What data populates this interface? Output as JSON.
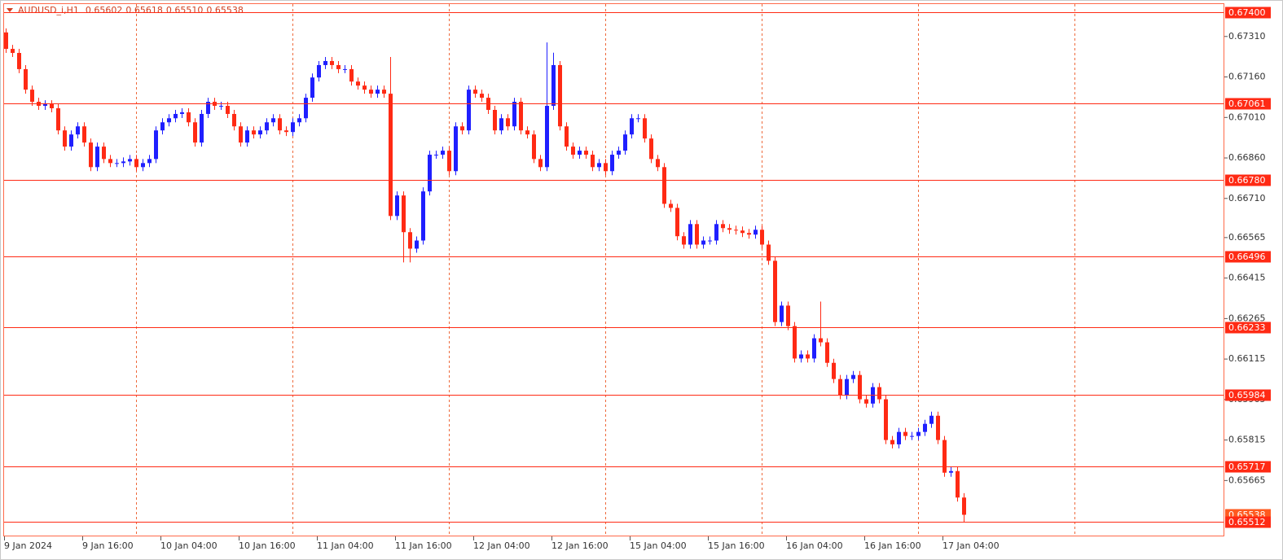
{
  "chart_data": {
    "type": "candlestick",
    "title": "AUDUSD_i,H1",
    "title_values": [
      "0.65602",
      "0.65618",
      "0.65510",
      "0.65538"
    ],
    "up_color": "#1f1fff",
    "down_color": "#ff2a14",
    "level_color": "#ff2a14",
    "grid_color": "#ee6a3c",
    "grid": true,
    "ylim": [
      0.65458,
      0.6743
    ],
    "yticks": [
      {
        "value": 0.6731,
        "label": "0.67310"
      },
      {
        "value": 0.6716,
        "label": "0.67160"
      },
      {
        "value": 0.6701,
        "label": "0.67010"
      },
      {
        "value": 0.6686,
        "label": "0.66860"
      },
      {
        "value": 0.6671,
        "label": "0.66710"
      },
      0.66565,
      0.66415,
      0.66265,
      0.66115,
      0.65965,
      0.65815,
      0.65665
    ],
    "levels": [
      {
        "value": 0.674,
        "label": "0.67400"
      },
      0.67061,
      {
        "value": 0.6678,
        "label": "0.66780"
      },
      0.66496,
      0.66233,
      0.65984,
      0.65717,
      0.65512
    ],
    "current_price": 0.65538,
    "categories": [
      "9 Jan 2024",
      null,
      null,
      null,
      null,
      null,
      null,
      null,
      null,
      null,
      null,
      null,
      "9 Jan 16:00",
      null,
      null,
      null,
      null,
      null,
      null,
      null,
      null,
      null,
      null,
      null,
      "10 Jan 04:00",
      null,
      null,
      null,
      null,
      null,
      null,
      null,
      null,
      null,
      null,
      null,
      "10 Jan 16:00",
      null,
      null,
      null,
      null,
      null,
      null,
      null,
      null,
      null,
      null,
      null,
      "11 Jan 04:00",
      null,
      null,
      null,
      null,
      null,
      null,
      null,
      null,
      null,
      null,
      null,
      "11 Jan 16:00",
      null,
      null,
      null,
      null,
      null,
      null,
      null,
      null,
      null,
      null,
      null,
      "12 Jan 04:00",
      null,
      null,
      null,
      null,
      null,
      null,
      null,
      null,
      null,
      null,
      null,
      "12 Jan 16:00",
      null,
      null,
      null,
      null,
      null,
      null,
      null,
      null,
      null,
      null,
      null,
      "15 Jan 04:00",
      null,
      null,
      null,
      null,
      null,
      null,
      null,
      null,
      null,
      null,
      null,
      "15 Jan 16:00",
      null,
      null,
      null,
      null,
      null,
      null,
      null,
      null,
      null,
      null,
      null,
      "16 Jan 04:00",
      null,
      null,
      null,
      null,
      null,
      null,
      null,
      null,
      null,
      null,
      null,
      "16 Jan 16:00",
      null,
      null,
      null,
      null,
      null,
      null,
      null,
      null,
      null,
      null,
      null,
      "17 Jan 04:00",
      null,
      null,
      null
    ],
    "open": [
      0.67325,
      0.67264,
      0.67249,
      0.67189,
      0.67113,
      0.67068,
      0.67053,
      0.67059,
      0.67044,
      0.66962,
      0.66902,
      0.66947,
      0.66977,
      0.66917,
      0.66826,
      0.66902,
      0.66856,
      0.66841,
      0.66841,
      0.66847,
      0.66856,
      0.66826,
      0.66841,
      0.66856,
      0.66962,
      0.66992,
      0.67007,
      0.67023,
      0.67029,
      0.66992,
      0.66917,
      0.67023,
      0.67068,
      0.67053,
      0.67053,
      0.67023,
      0.66977,
      0.66917,
      0.66962,
      0.66947,
      0.66962,
      0.66992,
      0.67007,
      0.66962,
      0.66956,
      0.66992,
      0.67007,
      0.67083,
      0.67158,
      0.67204,
      0.67219,
      0.67204,
      0.67189,
      0.67189,
      0.67143,
      0.67128,
      0.67113,
      0.67098,
      0.67113,
      0.67098,
      0.66645,
      0.66721,
      0.66585,
      0.66524,
      0.66554,
      0.66736,
      0.66872,
      0.66872,
      0.66887,
      0.66811,
      0.66977,
      0.66962,
      0.67113,
      0.67098,
      0.67083,
      0.67038,
      0.66962,
      0.67007,
      0.66977,
      0.67068,
      0.66962,
      0.66947,
      0.66856,
      0.66826,
      0.67053,
      0.67204,
      0.66977,
      0.66902,
      0.66872,
      0.66887,
      0.66872,
      0.66826,
      0.66841,
      0.66811,
      0.66872,
      0.66887,
      0.66947,
      0.67007,
      0.67007,
      0.66932,
      0.66856,
      0.66826,
      0.6669,
      0.66675,
      0.6657,
      0.66539,
      0.66615,
      0.66539,
      0.66554,
      0.66554,
      0.66615,
      0.666,
      0.66594,
      0.66591,
      0.66582,
      0.66576,
      0.66594,
      0.66539,
      0.66479,
      0.66252,
      0.66313,
      0.66237,
      0.66117,
      0.66132,
      0.66117,
      0.66192,
      0.66177,
      0.66101,
      0.66041,
      0.65981,
      0.66041,
      0.66056,
      0.65966,
      0.6595,
      0.66011,
      0.65966,
      0.65815,
      0.65799,
      0.65845,
      0.6583,
      0.6583,
      0.65845,
      0.65875,
      0.65905,
      0.65815,
      0.65694,
      0.657,
      0.65602
    ],
    "high": [
      0.6734,
      0.67279,
      0.67264,
      0.67204,
      0.67128,
      0.67083,
      0.67074,
      0.67074,
      0.67059,
      0.66977,
      0.66962,
      0.66992,
      0.66992,
      0.66932,
      0.66917,
      0.66917,
      0.66871,
      0.66856,
      0.66862,
      0.66871,
      0.66871,
      0.66856,
      0.66871,
      0.66977,
      0.67007,
      0.67022,
      0.67038,
      0.67044,
      0.67044,
      0.67007,
      0.67038,
      0.67083,
      0.67083,
      0.67068,
      0.67068,
      0.67038,
      0.66992,
      0.66977,
      0.66977,
      0.66977,
      0.67007,
      0.67022,
      0.67022,
      0.66977,
      0.67007,
      0.67022,
      0.67098,
      0.67173,
      0.67219,
      0.67234,
      0.67234,
      0.67219,
      0.67204,
      0.67204,
      0.67158,
      0.67143,
      0.67128,
      0.67128,
      0.67128,
      0.67234,
      0.66736,
      0.66736,
      0.666,
      0.66569,
      0.66751,
      0.66887,
      0.66887,
      0.66902,
      0.66902,
      0.66992,
      0.66992,
      0.67128,
      0.67128,
      0.67113,
      0.67098,
      0.67053,
      0.67022,
      0.67022,
      0.67083,
      0.67083,
      0.66977,
      0.66962,
      0.66871,
      0.67288,
      0.6725,
      0.67219,
      0.66992,
      0.66917,
      0.66902,
      0.66902,
      0.66887,
      0.66856,
      0.66856,
      0.66887,
      0.66902,
      0.66962,
      0.67022,
      0.67022,
      0.67022,
      0.66947,
      0.66871,
      0.66841,
      0.66705,
      0.6669,
      0.66585,
      0.6663,
      0.6663,
      0.66569,
      0.66569,
      0.6663,
      0.6663,
      0.66615,
      0.66609,
      0.66606,
      0.66597,
      0.66609,
      0.66609,
      0.66554,
      0.66494,
      0.66328,
      0.66328,
      0.66252,
      0.66147,
      0.66147,
      0.66207,
      0.66328,
      0.66192,
      0.66116,
      0.66056,
      0.66056,
      0.66071,
      0.66071,
      0.65981,
      0.66026,
      0.66026,
      0.65981,
      0.6583,
      0.6586,
      0.6586,
      0.65845,
      0.6586,
      0.6589,
      0.6592,
      0.6592,
      0.6583,
      0.65715,
      0.65715,
      0.65618
    ],
    "low": [
      0.67249,
      0.67234,
      0.67174,
      0.67098,
      0.67053,
      0.67038,
      0.67038,
      0.67029,
      0.66947,
      0.66887,
      0.66887,
      0.66932,
      0.66902,
      0.66811,
      0.66811,
      0.66841,
      0.66826,
      0.66826,
      0.66826,
      0.66832,
      0.66811,
      0.66811,
      0.66826,
      0.66841,
      0.66947,
      0.66977,
      0.66992,
      0.67008,
      0.66977,
      0.66902,
      0.66902,
      0.67008,
      0.67038,
      0.67038,
      0.67008,
      0.66962,
      0.66902,
      0.66902,
      0.66932,
      0.66932,
      0.66947,
      0.66977,
      0.66947,
      0.66941,
      0.66941,
      0.66977,
      0.66992,
      0.67068,
      0.67143,
      0.67189,
      0.67189,
      0.67174,
      0.67174,
      0.67128,
      0.67113,
      0.67098,
      0.67083,
      0.67083,
      0.67083,
      0.6663,
      0.6663,
      0.66473,
      0.66473,
      0.66509,
      0.66539,
      0.66721,
      0.66857,
      0.66857,
      0.66796,
      0.66796,
      0.66947,
      0.66947,
      0.67083,
      0.67068,
      0.67023,
      0.66947,
      0.66947,
      0.66962,
      0.66962,
      0.66947,
      0.66932,
      0.66841,
      0.66811,
      0.66811,
      0.67038,
      0.66962,
      0.66887,
      0.66857,
      0.66857,
      0.66857,
      0.66811,
      0.66811,
      0.66796,
      0.66796,
      0.66857,
      0.66872,
      0.66932,
      0.66992,
      0.66917,
      0.66841,
      0.66811,
      0.66675,
      0.6666,
      0.66555,
      0.66524,
      0.66524,
      0.66524,
      0.66524,
      0.66539,
      0.66539,
      0.66585,
      0.66579,
      0.66576,
      0.66567,
      0.66561,
      0.66561,
      0.66524,
      0.66464,
      0.66237,
      0.66237,
      0.66222,
      0.66102,
      0.66102,
      0.66102,
      0.66102,
      0.66162,
      0.66086,
      0.66026,
      0.65966,
      0.65966,
      0.66026,
      0.65951,
      0.65935,
      0.65935,
      0.65951,
      0.658,
      0.65784,
      0.65784,
      0.65815,
      0.65815,
      0.65815,
      0.6583,
      0.6586,
      0.658,
      0.65679,
      0.65679,
      0.65587,
      0.6551
    ],
    "close": [
      0.67264,
      0.67249,
      0.67189,
      0.67113,
      0.67068,
      0.67053,
      0.67059,
      0.67044,
      0.66962,
      0.66902,
      0.66947,
      0.66977,
      0.66917,
      0.66826,
      0.66902,
      0.66856,
      0.66841,
      0.66841,
      0.66847,
      0.66856,
      0.66826,
      0.66841,
      0.66856,
      0.66962,
      0.66992,
      0.67007,
      0.67023,
      0.67029,
      0.66992,
      0.66917,
      0.67023,
      0.67068,
      0.67053,
      0.67053,
      0.67023,
      0.66977,
      0.66917,
      0.66962,
      0.66947,
      0.66962,
      0.66992,
      0.67007,
      0.66962,
      0.66956,
      0.66992,
      0.67007,
      0.67083,
      0.67158,
      0.67204,
      0.67219,
      0.67204,
      0.67189,
      0.67189,
      0.67143,
      0.67128,
      0.67113,
      0.67098,
      0.67113,
      0.67098,
      0.66645,
      0.66721,
      0.66585,
      0.66524,
      0.66554,
      0.66736,
      0.66872,
      0.66872,
      0.66887,
      0.66811,
      0.66977,
      0.66962,
      0.67113,
      0.67098,
      0.67083,
      0.67038,
      0.66962,
      0.67007,
      0.66977,
      0.67068,
      0.66962,
      0.66947,
      0.66856,
      0.66826,
      0.67053,
      0.67204,
      0.66977,
      0.66902,
      0.66872,
      0.66887,
      0.66872,
      0.66826,
      0.66841,
      0.66811,
      0.66872,
      0.66887,
      0.66947,
      0.67007,
      0.67007,
      0.66932,
      0.66856,
      0.66826,
      0.6669,
      0.66675,
      0.6657,
      0.66539,
      0.66615,
      0.66539,
      0.66554,
      0.66554,
      0.66615,
      0.666,
      0.66594,
      0.66591,
      0.66582,
      0.66576,
      0.66594,
      0.66539,
      0.66479,
      0.66252,
      0.66313,
      0.66237,
      0.66117,
      0.66132,
      0.66117,
      0.66192,
      0.66177,
      0.66101,
      0.66041,
      0.65981,
      0.66041,
      0.66056,
      0.65966,
      0.6595,
      0.66011,
      0.65966,
      0.65815,
      0.65799,
      0.65845,
      0.6583,
      0.6583,
      0.65845,
      0.65875,
      0.65905,
      0.65815,
      0.65694,
      0.657,
      0.65602,
      0.65538
    ]
  }
}
